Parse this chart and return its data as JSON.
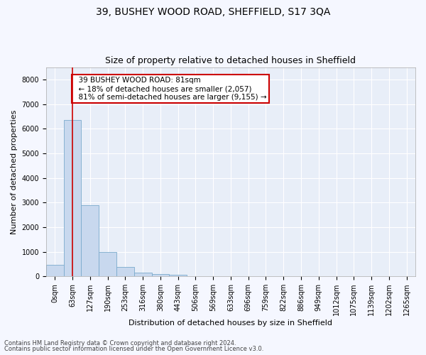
{
  "title1": "39, BUSHEY WOOD ROAD, SHEFFIELD, S17 3QA",
  "title2": "Size of property relative to detached houses in Sheffield",
  "xlabel": "Distribution of detached houses by size in Sheffield",
  "ylabel": "Number of detached properties",
  "categories": [
    "0sqm",
    "63sqm",
    "127sqm",
    "190sqm",
    "253sqm",
    "316sqm",
    "380sqm",
    "443sqm",
    "506sqm",
    "569sqm",
    "633sqm",
    "696sqm",
    "759sqm",
    "822sqm",
    "886sqm",
    "949sqm",
    "1012sqm",
    "1075sqm",
    "1139sqm",
    "1202sqm",
    "1265sqm"
  ],
  "bar_heights": [
    470,
    6350,
    2900,
    1000,
    380,
    150,
    80,
    50,
    5,
    0,
    0,
    0,
    0,
    0,
    0,
    0,
    0,
    0,
    0,
    0,
    0
  ],
  "bar_color": "#c8d8ee",
  "bar_edge_color": "#7aaacc",
  "vline_x": 1.0,
  "vline_color": "#cc0000",
  "annotation_text": "  39 BUSHEY WOOD ROAD: 81sqm\n  ← 18% of detached houses are smaller (2,057)\n  81% of semi-detached houses are larger (9,155) →",
  "annotation_box_color": "#ffffff",
  "annotation_box_edge": "#cc0000",
  "ylim": [
    0,
    8500
  ],
  "yticks": [
    0,
    1000,
    2000,
    3000,
    4000,
    5000,
    6000,
    7000,
    8000
  ],
  "footer_line1": "Contains HM Land Registry data © Crown copyright and database right 2024.",
  "footer_line2": "Contains public sector information licensed under the Open Government Licence v3.0.",
  "background_color": "#f5f7ff",
  "plot_bg_color": "#e8eef8",
  "grid_color": "#ffffff",
  "title1_fontsize": 10,
  "title2_fontsize": 9,
  "tick_fontsize": 7,
  "ylabel_fontsize": 8,
  "xlabel_fontsize": 8,
  "footer_fontsize": 6,
  "annotation_fontsize": 7.5
}
